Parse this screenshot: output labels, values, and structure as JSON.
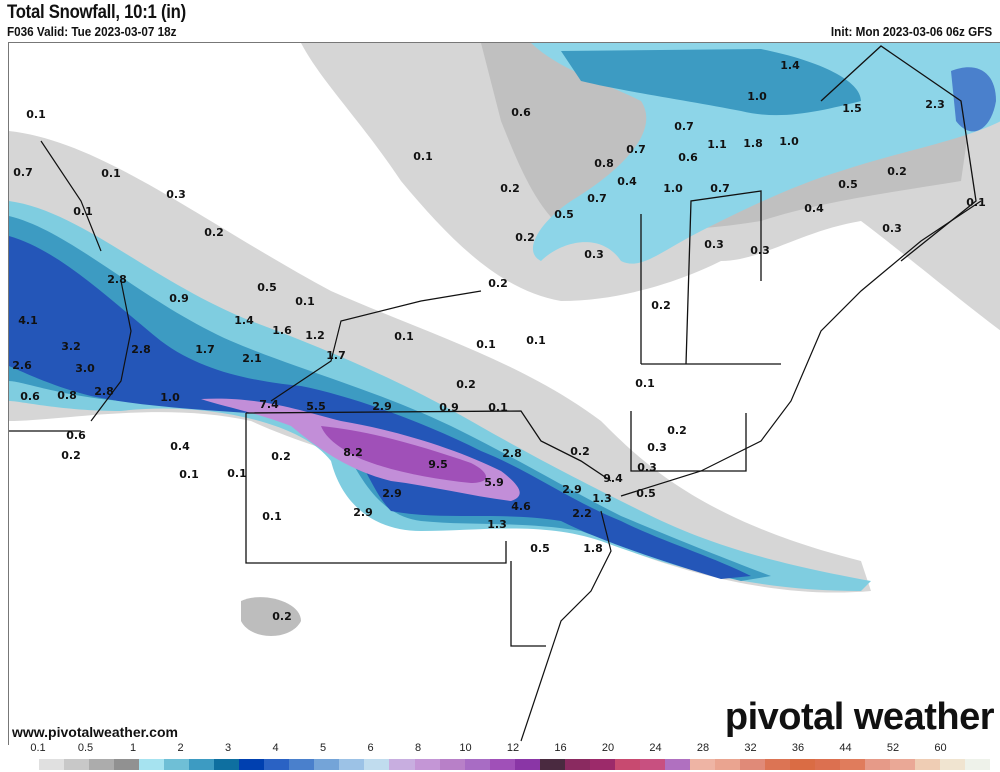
{
  "header": {
    "title": "Total Snowfall, 10:1 (in)",
    "valid": "F036 Valid: Tue 2023-03-07 18z",
    "init": "Init: Mon 2023-03-06 06z GFS"
  },
  "footer": {
    "website": "www.pivotalweather.com",
    "logo": "pivotal weather"
  },
  "colorbar": {
    "tick_labels": [
      "0.1",
      "0.5",
      "1",
      "2",
      "3",
      "4",
      "5",
      "6",
      "8",
      "10",
      "12",
      "16",
      "20",
      "24",
      "28",
      "32",
      "36",
      "44",
      "52",
      "60"
    ],
    "colors": [
      "#ffffff",
      "#e0e0e0",
      "#c8c8c8",
      "#acacac",
      "#919191",
      "#a6e3f0",
      "#6fbfd6",
      "#3d9bc2",
      "#0e6fa0",
      "#0040b0",
      "#2a62c4",
      "#4a80cc",
      "#74a4d8",
      "#9cc2e6",
      "#c0dcee",
      "#c8aee0",
      "#c496d6",
      "#b880c8",
      "#a86cc4",
      "#a050b8",
      "#8a36a6",
      "#4a2a40",
      "#8a2a60",
      "#9c2a6a",
      "#c84a70",
      "#c85080",
      "#b070c0",
      "#eeb4a4",
      "#eaa490",
      "#e08a78",
      "#dc7454",
      "#da6c44",
      "#dc7050",
      "#e07c5c",
      "#e69a88",
      "#eaa896",
      "#efcdb4",
      "#f0e4d0",
      "#eef2ea"
    ],
    "unit": "in"
  },
  "map": {
    "accumulations": [
      "0.1",
      "0.7",
      "0.1",
      "0.3",
      "0.1",
      "0.2",
      "2.8",
      "0.5",
      "0.9",
      "0.1",
      "4.1",
      "1.4",
      "1.6",
      "1.2",
      "3.2",
      "1.7",
      "2.8",
      "1.7",
      "2.1",
      "2.6",
      "3.0",
      "0.6",
      "0.8",
      "2.8",
      "1.0",
      "7.4",
      "5.5",
      "2.9",
      "0.9",
      "0.1",
      "0.6",
      "0.4",
      "0.2",
      "0.1",
      "0.1",
      "0.2",
      "8.2",
      "9.5",
      "5.9",
      "2.8",
      "2.9",
      "2.9",
      "0.1",
      "4.6",
      "2.9",
      "1.3",
      "2.2",
      "1.3",
      "0.5",
      "1.8",
      "0.2",
      "9.4",
      "0.3",
      "0.5",
      "0.3",
      "0.2",
      "0.1",
      "0.2",
      "0.1",
      "0.1",
      "0.1",
      "0.2",
      "0.2",
      "0.3",
      "0.2",
      "0.5",
      "0.7",
      "0.2",
      "0.1",
      "0.6",
      "0.8",
      "0.4",
      "0.7",
      "0.6",
      "0.7",
      "1.0",
      "0.7",
      "1.1",
      "1.8",
      "1.0",
      "1.0",
      "1.4",
      "0.3",
      "0.3",
      "1.5",
      "0.5",
      "0.4",
      "0.2",
      "0.3",
      "2.3",
      "0.1",
      "0.2"
    ]
  }
}
